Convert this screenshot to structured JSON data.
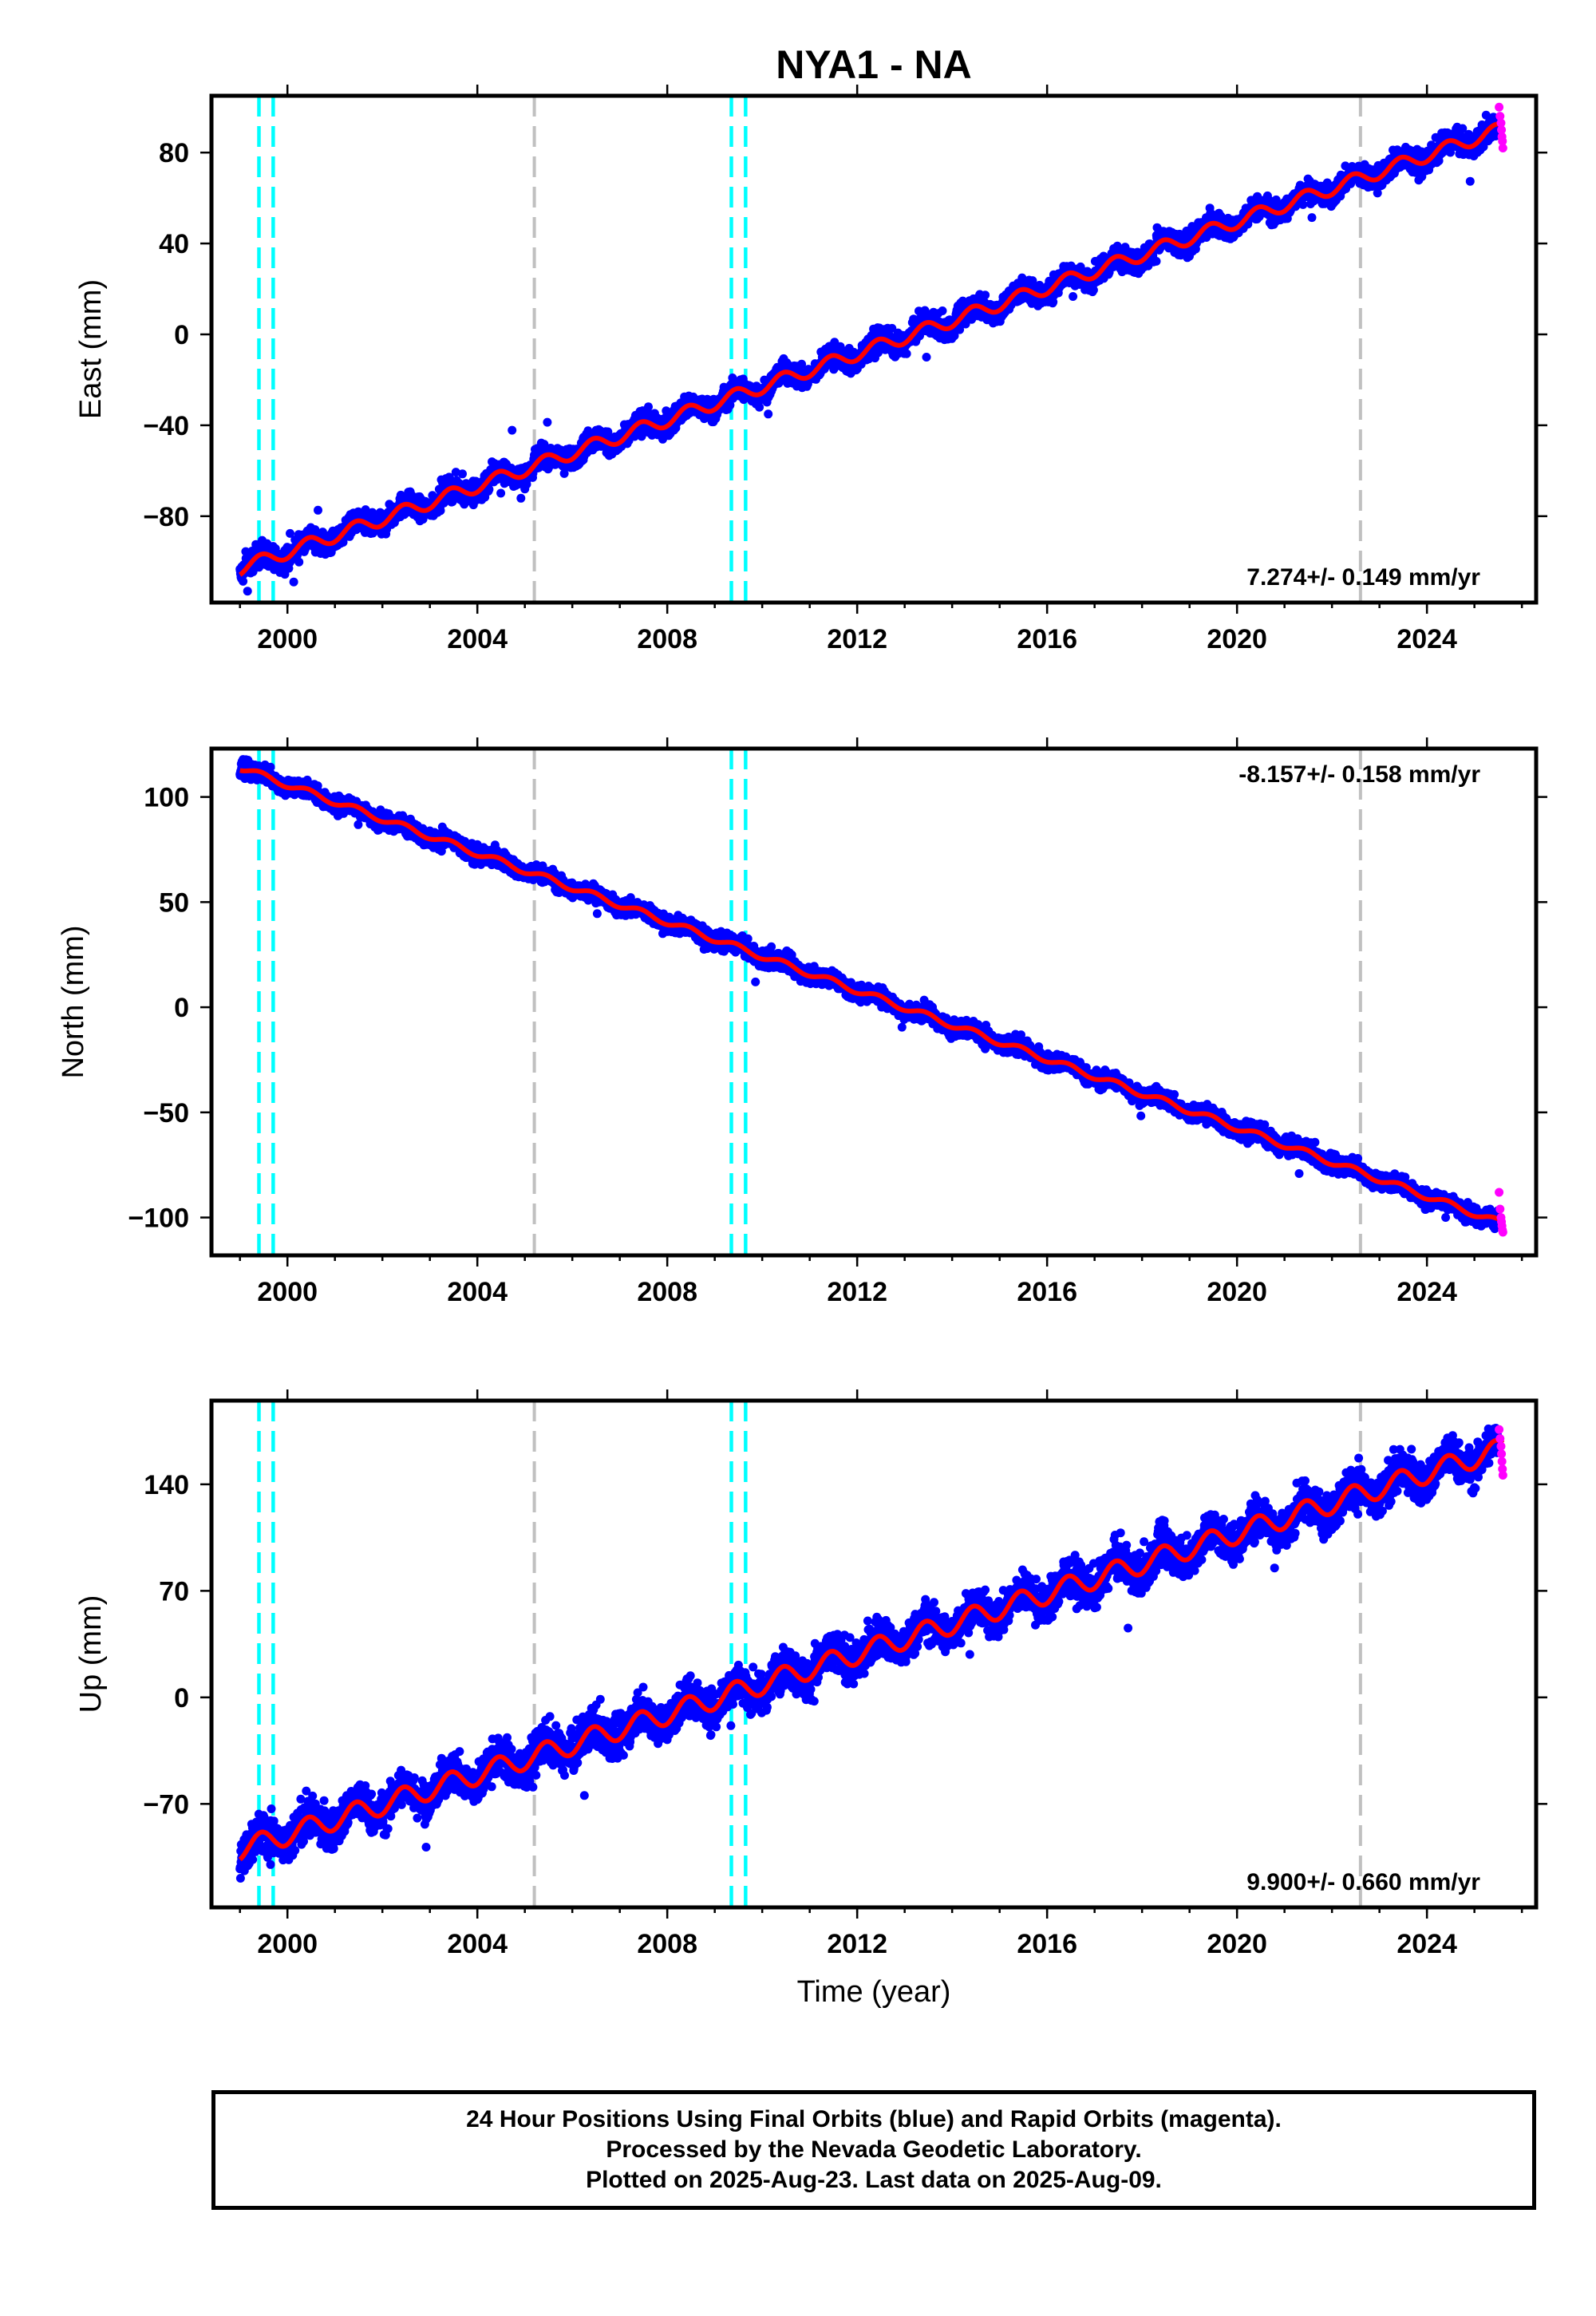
{
  "title": "NYA1 - NA",
  "footer": {
    "line1": "24 Hour Positions Using Final Orbits (blue) and Rapid Orbits (magenta).",
    "line2": "Processed by the Nevada Geodetic Laboratory.",
    "line3": "Plotted on 2025-Aug-23. Last data on 2025-Aug-09."
  },
  "colors": {
    "final_orbits": "#0000ff",
    "rapid_orbits": "#ff00ff",
    "model_fit": "#ff0000",
    "antenna_change": "#00ffff",
    "equipment_change": "#c0c0c0"
  },
  "chart_data": [
    {
      "type": "scatter",
      "ylabel": "East (mm)",
      "xlabel": "",
      "rate_text": "7.274+/- 0.149 mm/yr",
      "rate_position": "bottom-right",
      "xlim": [
        1998.4,
        2026.3
      ],
      "ylim": [
        -118,
        105
      ],
      "xticks": [
        2000,
        2004,
        2008,
        2012,
        2016,
        2020,
        2024
      ],
      "yticks": [
        -80,
        -40,
        0,
        40,
        80
      ],
      "xticklabels": [
        "2000",
        "2004",
        "2008",
        "2012",
        "2016",
        "2020",
        "2024"
      ],
      "yticklabels": [
        "−80",
        "−40",
        "0",
        "40",
        "80"
      ],
      "model": {
        "start_year": 1999.0,
        "end_year": 2025.6,
        "start_value": -103,
        "rate": 7.274,
        "seasonal_amplitude": 3.0,
        "scatter": 3.5
      },
      "rapid_points": {
        "x": [
          2025.52,
          2025.54,
          2025.56,
          2025.57,
          2025.58,
          2025.59,
          2025.6
        ],
        "y": [
          100,
          96,
          93,
          90,
          87,
          85,
          82
        ]
      },
      "vlines": [
        {
          "x": 1999.4,
          "kind": "antenna_change"
        },
        {
          "x": 1999.7,
          "kind": "antenna_change"
        },
        {
          "x": 2005.2,
          "kind": "equipment_change"
        },
        {
          "x": 2009.35,
          "kind": "antenna_change"
        },
        {
          "x": 2009.65,
          "kind": "antenna_change"
        },
        {
          "x": 2022.6,
          "kind": "equipment_change"
        }
      ]
    },
    {
      "type": "scatter",
      "ylabel": "North (mm)",
      "xlabel": "",
      "rate_text": "-8.157+/- 0.158 mm/yr",
      "rate_position": "top-right",
      "xlim": [
        1998.4,
        2026.3
      ],
      "ylim": [
        -118,
        123
      ],
      "xticks": [
        2000,
        2004,
        2008,
        2012,
        2016,
        2020,
        2024
      ],
      "yticks": [
        -100,
        -50,
        0,
        50,
        100
      ],
      "xticklabels": [
        "2000",
        "2004",
        "2008",
        "2012",
        "2016",
        "2020",
        "2024"
      ],
      "yticklabels": [
        "−100",
        "−50",
        "0",
        "50",
        "100"
      ],
      "model": {
        "start_year": 1999.0,
        "end_year": 2025.6,
        "start_value": 114,
        "rate": -8.157,
        "seasonal_amplitude": 1.5,
        "scatter": 2.8
      },
      "rapid_points": {
        "x": [
          2025.52,
          2025.54,
          2025.56,
          2025.57,
          2025.58,
          2025.59,
          2025.6
        ],
        "y": [
          -88,
          -96,
          -100,
          -102,
          -104,
          -106,
          -107
        ]
      },
      "vlines": [
        {
          "x": 1999.4,
          "kind": "antenna_change"
        },
        {
          "x": 1999.7,
          "kind": "antenna_change"
        },
        {
          "x": 2005.2,
          "kind": "equipment_change"
        },
        {
          "x": 2009.35,
          "kind": "antenna_change"
        },
        {
          "x": 2009.65,
          "kind": "antenna_change"
        },
        {
          "x": 2022.6,
          "kind": "equipment_change"
        }
      ]
    },
    {
      "type": "scatter",
      "ylabel": "Up (mm)",
      "xlabel": "Time (year)",
      "rate_text": "9.900+/- 0.660 mm/yr",
      "rate_position": "bottom-right",
      "xlim": [
        1998.4,
        2026.3
      ],
      "ylim": [
        -138,
        195
      ],
      "xticks": [
        2000,
        2004,
        2008,
        2012,
        2016,
        2020,
        2024
      ],
      "yticks": [
        -70,
        0,
        70,
        140
      ],
      "xticklabels": [
        "2000",
        "2004",
        "2008",
        "2012",
        "2016",
        "2020",
        "2024"
      ],
      "yticklabels": [
        "−70",
        "0",
        "70",
        "140"
      ],
      "model": {
        "start_year": 1999.0,
        "end_year": 2025.6,
        "start_value": -100,
        "rate": 9.9,
        "seasonal_amplitude": 7.0,
        "scatter": 9.0
      },
      "rapid_points": {
        "x": [
          2025.52,
          2025.54,
          2025.56,
          2025.57,
          2025.58,
          2025.59,
          2025.6
        ],
        "y": [
          176,
          170,
          165,
          160,
          155,
          150,
          146
        ]
      },
      "vlines": [
        {
          "x": 1999.4,
          "kind": "antenna_change"
        },
        {
          "x": 1999.7,
          "kind": "antenna_change"
        },
        {
          "x": 2005.2,
          "kind": "equipment_change"
        },
        {
          "x": 2009.35,
          "kind": "antenna_change"
        },
        {
          "x": 2009.65,
          "kind": "antenna_change"
        },
        {
          "x": 2022.6,
          "kind": "equipment_change"
        }
      ]
    }
  ]
}
